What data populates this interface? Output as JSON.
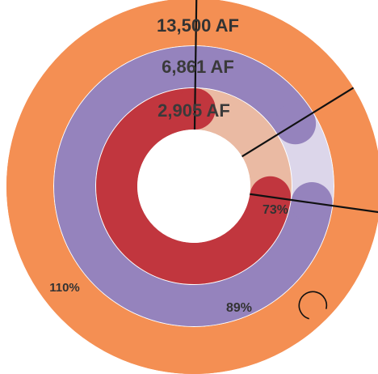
{
  "chart_data": {
    "type": "pie",
    "variant": "nested-radial-progress",
    "rings": [
      {
        "value_label": "13,500 AF",
        "percent": 110,
        "percent_label": "110%",
        "fill_color": "#f48f53",
        "track_color": "#f48f53"
      },
      {
        "value_label": "6,861 AF",
        "percent": 89,
        "percent_label": "89%",
        "fill_color": "#9583bd",
        "track_color": "#dcd6ea"
      },
      {
        "value_label": "2,905 AF",
        "percent": 73,
        "percent_label": "73%",
        "fill_color": "#c1363e",
        "track_color": "#eabaa3"
      }
    ]
  }
}
